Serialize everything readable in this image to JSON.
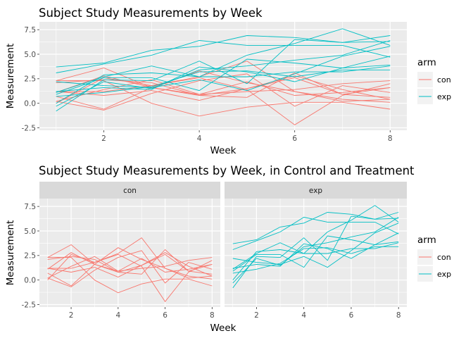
{
  "colors": {
    "con": "#F8766D",
    "exp": "#00BFC4",
    "panel": "#EBEBEB",
    "grid": "#FFFFFF",
    "strip": "#D9D9D9"
  },
  "chart_data": [
    {
      "type": "line",
      "title": "Subject Study Measurements by Week",
      "xlabel": "Week",
      "ylabel": "Measurement",
      "xlim": [
        0.65,
        8.35
      ],
      "ylim": [
        -2.75,
        8.3
      ],
      "x_ticks": [
        "2",
        "4",
        "6",
        "8"
      ],
      "y_ticks": [
        "-2.5",
        "0.0",
        "2.5",
        "5.0",
        "7.5"
      ],
      "grid": true,
      "legend": {
        "title": "arm",
        "position": "right",
        "entries": [
          "con",
          "exp"
        ]
      },
      "x": [
        1,
        2,
        3,
        4,
        5,
        6,
        7,
        8
      ],
      "series": [
        {
          "group": "con",
          "values": [
            0.2,
            -0.7,
            1.0,
            2.3,
            3.0,
            -0.3,
            1.8,
            1.1
          ]
        },
        {
          "group": "con",
          "values": [
            1.1,
            2.8,
            1.6,
            0.9,
            1.2,
            1.4,
            2.0,
            2.3
          ]
        },
        {
          "group": "con",
          "values": [
            1.2,
            0.8,
            1.3,
            0.3,
            1.5,
            2.8,
            1.4,
            0.4
          ]
        },
        {
          "group": "con",
          "values": [
            2.3,
            3.6,
            1.6,
            0.8,
            1.5,
            2.6,
            0.9,
            1.6
          ]
        },
        {
          "group": "con",
          "values": [
            0.0,
            2.6,
            1.8,
            2.7,
            4.3,
            1.2,
            0.2,
            0.4
          ]
        },
        {
          "group": "con",
          "values": [
            2.3,
            2.3,
            0.0,
            -1.3,
            -0.4,
            0.1,
            0.1,
            -0.6
          ]
        },
        {
          "group": "con",
          "values": [
            0.2,
            1.4,
            2.4,
            0.9,
            2.2,
            0.8,
            1.1,
            1.6
          ]
        },
        {
          "group": "con",
          "values": [
            1.2,
            1.2,
            1.8,
            2.6,
            1.4,
            -2.2,
            0.8,
            2.0
          ]
        },
        {
          "group": "con",
          "values": [
            0.7,
            -0.6,
            1.6,
            3.3,
            2.1,
            1.2,
            0.4,
            0.1
          ]
        },
        {
          "group": "con",
          "values": [
            2.1,
            2.4,
            2.1,
            0.8,
            0.6,
            3.1,
            0.9,
            0.6
          ]
        },
        {
          "group": "exp",
          "values": [
            -0.8,
            2.4,
            2.3,
            4.3,
            2.0,
            6.5,
            6.2,
            6.9
          ]
        },
        {
          "group": "exp",
          "values": [
            3.7,
            4.1,
            5.4,
            5.8,
            6.9,
            6.7,
            6.2,
            6.3
          ]
        },
        {
          "group": "exp",
          "values": [
            1.1,
            2.7,
            3.8,
            2.7,
            4.9,
            6.1,
            7.6,
            5.9
          ]
        },
        {
          "group": "exp",
          "values": [
            3.1,
            4.0,
            4.9,
            6.4,
            5.9,
            5.9,
            5.9,
            4.7
          ]
        },
        {
          "group": "exp",
          "values": [
            0.9,
            2.6,
            2.6,
            1.3,
            4.5,
            4.1,
            3.6,
            3.9
          ]
        },
        {
          "group": "exp",
          "values": [
            0.0,
            2.9,
            3.1,
            2.7,
            2.7,
            3.2,
            3.2,
            3.8
          ]
        },
        {
          "group": "exp",
          "values": [
            1.2,
            1.6,
            1.4,
            3.7,
            3.2,
            2.2,
            3.6,
            4.8
          ]
        },
        {
          "group": "exp",
          "values": [
            -0.3,
            2.2,
            1.5,
            3.4,
            3.8,
            4.4,
            4.9,
            6.4
          ]
        },
        {
          "group": "exp",
          "values": [
            2.2,
            1.8,
            1.6,
            2.4,
            1.3,
            3.0,
            4.8,
            5.8
          ]
        },
        {
          "group": "exp",
          "values": [
            0.7,
            1.1,
            1.7,
            3.2,
            3.3,
            2.7,
            3.4,
            3.4
          ]
        }
      ]
    },
    {
      "type": "line",
      "title": "Subject Study Measurements by Week, in Control and Treatment",
      "xlabel": "Week",
      "ylabel": "Measurement",
      "xlim": [
        0.65,
        8.35
      ],
      "ylim": [
        -2.75,
        8.3
      ],
      "x_ticks": [
        "2",
        "4",
        "6",
        "8"
      ],
      "y_ticks": [
        "-2.5",
        "0.0",
        "2.5",
        "5.0",
        "7.5"
      ],
      "grid": true,
      "facets": [
        "con",
        "exp"
      ],
      "legend": {
        "title": "arm",
        "position": "right",
        "entries": [
          "con",
          "exp"
        ]
      },
      "note": "same series as above, split into one panel per arm"
    }
  ]
}
